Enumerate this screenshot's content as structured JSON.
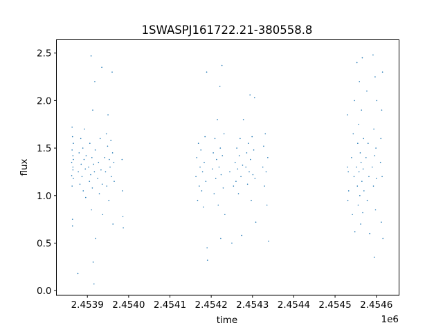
{
  "chart_data": {
    "type": "scatter",
    "title": "1SWASPJ161722.21-380558.8",
    "xlabel": "time",
    "ylabel": "flux",
    "x_offset_label": "1e6",
    "xlim": [
      2453825,
      2454655
    ],
    "ylim": [
      -0.05,
      2.64
    ],
    "grid": false,
    "marker_color": "#1f77b4",
    "xticks": [
      2453900,
      2454000,
      2454100,
      2454200,
      2454300,
      2454400,
      2454500,
      2454600
    ],
    "xtick_labels": [
      "2.4539",
      "2.4540",
      "2.4541",
      "2.4542",
      "2.4543",
      "2.4544",
      "2.4545",
      "2.4546"
    ],
    "yticks": [
      0,
      0.5,
      1.0,
      1.5,
      2.0,
      2.5
    ],
    "ytick_labels": [
      "0.0",
      "0.5",
      "1.0",
      "1.5",
      "2.0",
      "2.5"
    ],
    "points": [
      [
        2453862,
        1.35
      ],
      [
        2453862,
        1.21
      ],
      [
        2453863,
        1.48
      ],
      [
        2453863,
        1.1
      ],
      [
        2453864,
        1.62
      ],
      [
        2453864,
        0.75
      ],
      [
        2453865,
        1.3
      ],
      [
        2453865,
        1.42
      ],
      [
        2453866,
        1.18
      ],
      [
        2453866,
        1.55
      ],
      [
        2453863,
        1.72
      ],
      [
        2453864,
        0.68
      ],
      [
        2453865,
        1.27
      ],
      [
        2453866,
        1.38
      ],
      [
        2453878,
        1.25
      ],
      [
        2453880,
        1.45
      ],
      [
        2453882,
        1.12
      ],
      [
        2453884,
        1.6
      ],
      [
        2453885,
        1.33
      ],
      [
        2453887,
        1.2
      ],
      [
        2453889,
        1.5
      ],
      [
        2453890,
        1.05
      ],
      [
        2453892,
        1.38
      ],
      [
        2453893,
        1.7
      ],
      [
        2453895,
        1.28
      ],
      [
        2453896,
        0.98
      ],
      [
        2453897,
        1.42
      ],
      [
        2453877,
        0.18
      ],
      [
        2453903,
        1.3
      ],
      [
        2453905,
        1.15
      ],
      [
        2453906,
        1.55
      ],
      [
        2453908,
        1.22
      ],
      [
        2453909,
        2.47
      ],
      [
        2453910,
        0.85
      ],
      [
        2453911,
        1.4
      ],
      [
        2453912,
        1.08
      ],
      [
        2453913,
        1.9
      ],
      [
        2453914,
        0.3
      ],
      [
        2453915,
        1.33
      ],
      [
        2453916,
        0.07
      ],
      [
        2453917,
        1.25
      ],
      [
        2453918,
        2.2
      ],
      [
        2453919,
        1.48
      ],
      [
        2453920,
        0.55
      ],
      [
        2453925,
        1.18
      ],
      [
        2453927,
        1.35
      ],
      [
        2453929,
        1.02
      ],
      [
        2453931,
        1.6
      ],
      [
        2453933,
        1.27
      ],
      [
        2453935,
        2.35
      ],
      [
        2453936,
        1.12
      ],
      [
        2453937,
        0.8
      ],
      [
        2453942,
        1.4
      ],
      [
        2453944,
        1.25
      ],
      [
        2453946,
        1.65
      ],
      [
        2453947,
        1.1
      ],
      [
        2453949,
        1.52
      ],
      [
        2453950,
        1.85
      ],
      [
        2453952,
        0.95
      ],
      [
        2453953,
        1.38
      ],
      [
        2453955,
        1.3
      ],
      [
        2453957,
        1.58
      ],
      [
        2453958,
        1.2
      ],
      [
        2453960,
        2.3
      ],
      [
        2453961,
        1.45
      ],
      [
        2453962,
        0.7
      ],
      [
        2453964,
        1.35
      ],
      [
        2453965,
        1.15
      ],
      [
        2453984,
        1.38
      ],
      [
        2453985,
        1.05
      ],
      [
        2453986,
        0.78
      ],
      [
        2453987,
        0.66
      ],
      [
        2454163,
        1.2
      ],
      [
        2454165,
        1.4
      ],
      [
        2454167,
        0.95
      ],
      [
        2454169,
        1.55
      ],
      [
        2454171,
        1.1
      ],
      [
        2454173,
        1.3
      ],
      [
        2454175,
        1.48
      ],
      [
        2454177,
        1.05
      ],
      [
        2454179,
        1.25
      ],
      [
        2454181,
        0.88
      ],
      [
        2454183,
        1.35
      ],
      [
        2454185,
        1.62
      ],
      [
        2454187,
        1.15
      ],
      [
        2454189,
        2.3
      ],
      [
        2454190,
        0.45
      ],
      [
        2454191,
        0.32
      ],
      [
        2454203,
        1.28
      ],
      [
        2454205,
        1.45
      ],
      [
        2454207,
        1.02
      ],
      [
        2454209,
        1.6
      ],
      [
        2454211,
        1.18
      ],
      [
        2454213,
        1.38
      ],
      [
        2454215,
        1.8
      ],
      [
        2454217,
        0.9
      ],
      [
        2454219,
        1.3
      ],
      [
        2454221,
        2.15
      ],
      [
        2454222,
        1.5
      ],
      [
        2454223,
        0.55
      ],
      [
        2454224,
        1.22
      ],
      [
        2454226,
        2.37
      ],
      [
        2454227,
        1.42
      ],
      [
        2454229,
        1.08
      ],
      [
        2454231,
        1.65
      ],
      [
        2454233,
        0.8
      ],
      [
        2454245,
        1.25
      ],
      [
        2454250,
        0.5
      ],
      [
        2454254,
        1.1
      ],
      [
        2454258,
        1.35
      ],
      [
        2454260,
        1.15
      ],
      [
        2454262,
        1.5
      ],
      [
        2454264,
        1.28
      ],
      [
        2454266,
        1.02
      ],
      [
        2454268,
        1.42
      ],
      [
        2454270,
        1.6
      ],
      [
        2454272,
        1.2
      ],
      [
        2454274,
        0.58
      ],
      [
        2454276,
        1.32
      ],
      [
        2454278,
        1.8
      ],
      [
        2454284,
        1.3
      ],
      [
        2454286,
        1.45
      ],
      [
        2454288,
        1.12
      ],
      [
        2454290,
        1.55
      ],
      [
        2454292,
        1.25
      ],
      [
        2454294,
        2.06
      ],
      [
        2454295,
        1.38
      ],
      [
        2454297,
        0.95
      ],
      [
        2454299,
        1.62
      ],
      [
        2454301,
        1.22
      ],
      [
        2454303,
        1.48
      ],
      [
        2454305,
        2.03
      ],
      [
        2454306,
        1.18
      ],
      [
        2454308,
        0.72
      ],
      [
        2454325,
        1.3
      ],
      [
        2454327,
        1.52
      ],
      [
        2454329,
        1.1
      ],
      [
        2454331,
        1.65
      ],
      [
        2454333,
        1.25
      ],
      [
        2454335,
        0.9
      ],
      [
        2454337,
        1.4
      ],
      [
        2454339,
        0.52
      ],
      [
        2454530,
        1.3
      ],
      [
        2454530,
        1.85
      ],
      [
        2454531,
        0.95
      ],
      [
        2454532,
        1.25
      ],
      [
        2454533,
        1.05
      ],
      [
        2454540,
        1.4
      ],
      [
        2454542,
        0.8
      ],
      [
        2454544,
        1.65
      ],
      [
        2454546,
        1.2
      ],
      [
        2454547,
        2.0
      ],
      [
        2454548,
        0.62
      ],
      [
        2454552,
        1.3
      ],
      [
        2454553,
        2.4
      ],
      [
        2454554,
        1.1
      ],
      [
        2454555,
        1.55
      ],
      [
        2454556,
        0.9
      ],
      [
        2454557,
        1.75
      ],
      [
        2454558,
        1.25
      ],
      [
        2454559,
        2.2
      ],
      [
        2454560,
        1.0
      ],
      [
        2454561,
        1.45
      ],
      [
        2454562,
        0.7
      ],
      [
        2454563,
        1.35
      ],
      [
        2454564,
        1.9
      ],
      [
        2454565,
        1.15
      ],
      [
        2454566,
        2.45
      ],
      [
        2454567,
        0.82
      ],
      [
        2454568,
        1.28
      ],
      [
        2454569,
        1.6
      ],
      [
        2454570,
        1.05
      ],
      [
        2454575,
        1.4
      ],
      [
        2454577,
        2.1
      ],
      [
        2454578,
        0.95
      ],
      [
        2454580,
        1.55
      ],
      [
        2454582,
        1.2
      ],
      [
        2454584,
        0.6
      ],
      [
        2454590,
        1.3
      ],
      [
        2454592,
        2.48
      ],
      [
        2454593,
        1.1
      ],
      [
        2454594,
        1.7
      ],
      [
        2454595,
        0.35
      ],
      [
        2454596,
        1.42
      ],
      [
        2454597,
        2.25
      ],
      [
        2454598,
        0.85
      ],
      [
        2454599,
        1.5
      ],
      [
        2454600,
        1.18
      ],
      [
        2454601,
        2.0
      ],
      [
        2454610,
        1.35
      ],
      [
        2454611,
        1.6
      ],
      [
        2454612,
        0.72
      ],
      [
        2454613,
        1.9
      ],
      [
        2454614,
        1.2
      ],
      [
        2454615,
        2.3
      ],
      [
        2454616,
        0.55
      ]
    ]
  }
}
